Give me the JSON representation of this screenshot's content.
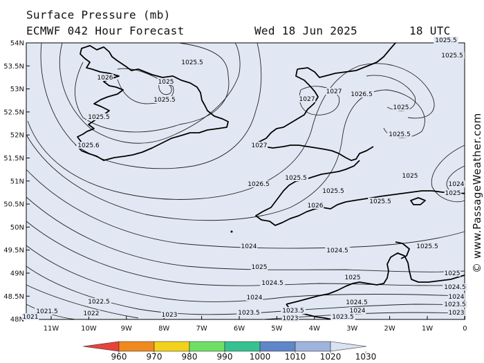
{
  "header": {
    "title": "Surface Pressure (mb)",
    "model": "ECMWF 042 Hour Forecast",
    "date": "Wed 18 Jun 2025",
    "time": "18 UTC"
  },
  "credit": "© www.PassageWeather.com",
  "axes": {
    "lat_labels": [
      "54N",
      "53.5N",
      "53N",
      "52.5N",
      "52N",
      "51.5N",
      "51N",
      "50.5N",
      "50N",
      "49.5N",
      "49N",
      "48.5N",
      "48N"
    ],
    "lon_labels": [
      "11W",
      "10W",
      "9W",
      "8W",
      "7W",
      "6W",
      "5W",
      "4W",
      "3W",
      "2W",
      "1W",
      "0"
    ]
  },
  "isobar_labels": [
    "1025.5",
    "1026",
    "1025",
    "1025.5",
    "1025.5",
    "1025.6",
    "1027",
    "1026.5",
    "1027",
    "1025",
    "1025.5",
    "1027",
    "1026.5",
    "1025.5",
    "1025.5",
    "1026",
    "1025.5",
    "1025",
    "1024",
    "1025",
    "1025.5",
    "1025.5",
    "1025",
    "1024.5",
    "1024",
    "1025",
    "1024.5",
    "1024",
    "1023.5",
    "1023",
    "1023.5",
    "1024.5",
    "1024",
    "1023.5",
    "1022.5",
    "1022",
    "1023",
    "1021.5",
    "1025.5",
    "1025",
    "1024.5",
    "1024",
    "1023.5",
    "1023",
    "1021"
  ],
  "colorbar": {
    "ticks": [
      "960",
      "970",
      "980",
      "990",
      "1000",
      "1010",
      "1020",
      "1030"
    ],
    "colors": [
      "#e8423a",
      "#f08a1e",
      "#f2d21b",
      "#6fe065",
      "#36c290",
      "#5f86c8",
      "#9fb4dc",
      "#d9e2f1"
    ]
  },
  "colors": {
    "sea": "#e2e8f3",
    "coast": "#000000",
    "isobar": "#222222"
  }
}
